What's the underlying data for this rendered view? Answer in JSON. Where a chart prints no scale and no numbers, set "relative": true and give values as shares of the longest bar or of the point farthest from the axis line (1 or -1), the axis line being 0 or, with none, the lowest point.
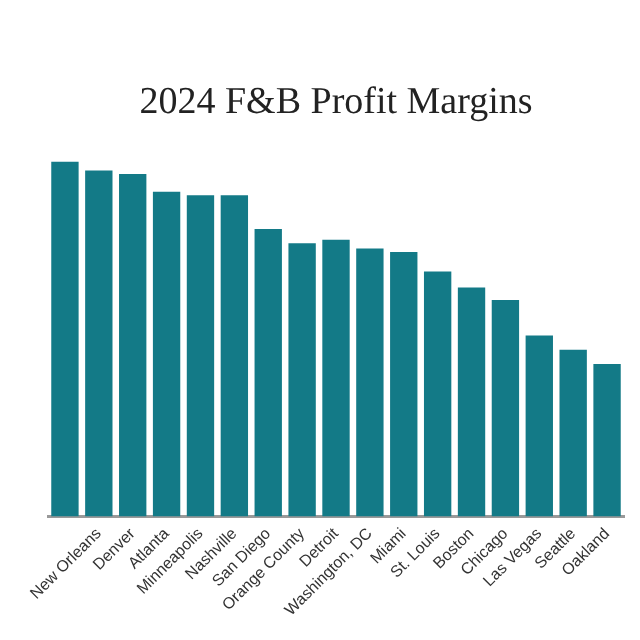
{
  "chart_data": {
    "type": "bar",
    "title": "2024 F&B Profit Margins",
    "relative": true,
    "color": "#137a87",
    "grid": false,
    "legend": false,
    "categories": [
      null,
      "New Orleans",
      "Denver",
      "Atlanta",
      "Minneapolis",
      "Nashville",
      "San Diego",
      "Orange County",
      "Detroit",
      "Washington, DC",
      "Miami",
      "St. Louis",
      "Boston",
      "Chicago",
      "Las Vegas",
      "Seattle",
      "Oakland"
    ],
    "values": [
      1.0,
      0.975,
      0.965,
      0.915,
      0.905,
      0.905,
      0.81,
      0.77,
      0.78,
      0.755,
      0.745,
      0.69,
      0.645,
      0.61,
      0.51,
      0.47,
      0.43
    ]
  }
}
